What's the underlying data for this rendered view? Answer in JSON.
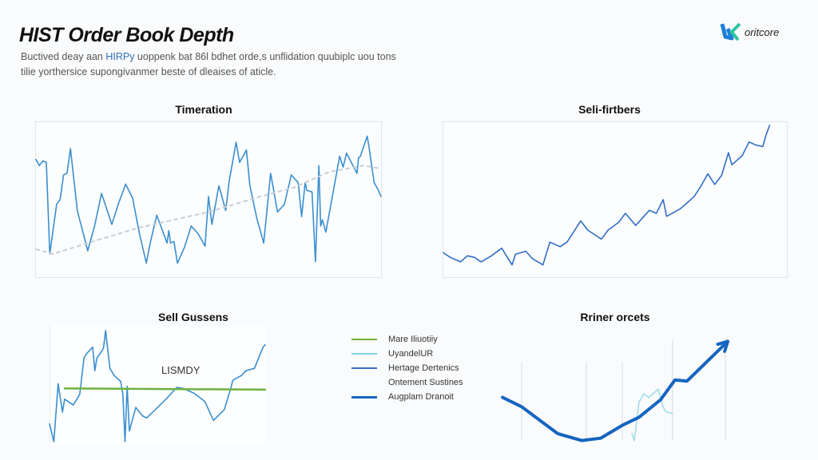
{
  "header": {
    "title": "HIST Order Book Depth",
    "subtitle_pre": "Buctived deay aan ",
    "subtitle_highlight": "HIRPy",
    "subtitle_post": " uoppenk bat 86l bdhet orde,s unflidation quubiplc uou tons tilie yorthersice supongivanmer beste of dleaises of aticle.",
    "logo_text": "oritcore",
    "accent": "#2f6db5"
  },
  "chart_data": [
    {
      "type": "line",
      "title": "Timeration",
      "xlim": [
        0,
        100
      ],
      "ylim": [
        0,
        100
      ],
      "grid": false,
      "series": [
        {
          "color": "#3a8fd0",
          "style": "solid",
          "points": [
            [
              0,
              76
            ],
            [
              1,
              72
            ],
            [
              2,
              75
            ],
            [
              3,
              74
            ],
            [
              4,
              15
            ],
            [
              6,
              47
            ],
            [
              7,
              50
            ],
            [
              8,
              66
            ],
            [
              9,
              67
            ],
            [
              10,
              83
            ],
            [
              12,
              43
            ],
            [
              15,
              17
            ],
            [
              17,
              33
            ],
            [
              19,
              54
            ],
            [
              22,
              34
            ],
            [
              24,
              48
            ],
            [
              26,
              60
            ],
            [
              28,
              51
            ],
            [
              30,
              28
            ],
            [
              32,
              9
            ],
            [
              33,
              21
            ],
            [
              35,
              40
            ],
            [
              37,
              28
            ],
            [
              38,
              22
            ],
            [
              38.5,
              30
            ],
            [
              39,
              22
            ],
            [
              40,
              23
            ],
            [
              41,
              9
            ],
            [
              43,
              19
            ],
            [
              45,
              33
            ],
            [
              47,
              28
            ],
            [
              49,
              20
            ],
            [
              50,
              52
            ],
            [
              51,
              34
            ],
            [
              53,
              59
            ],
            [
              55,
              43
            ],
            [
              56,
              62
            ],
            [
              58,
              87
            ],
            [
              59,
              74
            ],
            [
              61,
              82
            ],
            [
              62,
              59
            ],
            [
              64,
              38
            ],
            [
              66,
              22
            ],
            [
              68,
              67
            ],
            [
              70,
              42
            ],
            [
              72,
              47
            ],
            [
              74,
              66
            ],
            [
              76,
              61
            ],
            [
              77,
              39
            ],
            [
              78,
              61
            ],
            [
              78.5,
              56
            ],
            [
              80,
              55
            ],
            [
              81,
              10
            ],
            [
              82,
              72
            ],
            [
              82.5,
              33
            ],
            [
              83,
              37
            ],
            [
              84,
              29
            ],
            [
              88,
              78
            ],
            [
              89,
              71
            ],
            [
              90,
              80
            ],
            [
              93,
              67
            ],
            [
              93.5,
              77
            ],
            [
              94,
              78
            ],
            [
              96,
              91
            ],
            [
              96.5,
              84
            ],
            [
              98,
              61
            ],
            [
              99,
              57
            ],
            [
              100,
              52
            ]
          ]
        },
        {
          "color": "#c9cdd2",
          "style": "dashed",
          "points": [
            [
              0,
              18
            ],
            [
              5,
              15
            ],
            [
              15,
              22
            ],
            [
              30,
              32
            ],
            [
              50,
              42
            ],
            [
              65,
              52
            ],
            [
              75,
              58
            ],
            [
              85,
              68
            ],
            [
              95,
              72
            ],
            [
              100,
              70
            ]
          ]
        }
      ]
    },
    {
      "type": "line",
      "title": "Seli-firtbers",
      "xlim": [
        0,
        100
      ],
      "ylim": [
        0,
        100
      ],
      "grid": false,
      "series": [
        {
          "color": "#2f6fc6",
          "style": "solid",
          "points": [
            [
              0,
              15
            ],
            [
              2,
              12
            ],
            [
              5,
              9
            ],
            [
              7,
              13
            ],
            [
              9,
              12
            ],
            [
              11,
              9
            ],
            [
              14,
              13
            ],
            [
              17,
              18
            ],
            [
              20,
              7
            ],
            [
              21,
              14
            ],
            [
              24,
              16
            ],
            [
              26,
              11
            ],
            [
              29,
              7
            ],
            [
              31,
              22
            ],
            [
              34,
              19
            ],
            [
              36,
              22
            ],
            [
              38,
              29
            ],
            [
              40,
              36
            ],
            [
              42,
              30
            ],
            [
              46,
              24
            ],
            [
              48,
              30
            ],
            [
              51,
              35
            ],
            [
              53,
              41
            ],
            [
              56,
              33
            ],
            [
              60,
              43
            ],
            [
              62,
              41
            ],
            [
              64,
              50
            ],
            [
              65,
              39
            ],
            [
              69,
              44
            ],
            [
              73,
              52
            ],
            [
              75,
              59
            ],
            [
              77,
              67
            ],
            [
              79,
              60
            ],
            [
              81,
              66
            ],
            [
              83,
              81
            ],
            [
              84,
              73
            ],
            [
              87,
              79
            ],
            [
              89,
              88
            ],
            [
              91,
              86
            ],
            [
              93,
              85
            ],
            [
              94,
              93
            ],
            [
              95,
              99
            ]
          ]
        }
      ]
    },
    {
      "type": "line",
      "title": "Sell Gussens",
      "annotation": "LISMDY",
      "xlim": [
        0,
        100
      ],
      "ylim": [
        0,
        100
      ],
      "grid": false,
      "series": [
        {
          "color": "#3a8fd0",
          "style": "solid",
          "points": [
            [
              0,
              17
            ],
            [
              2,
              2
            ],
            [
              4,
              51
            ],
            [
              6,
              27
            ],
            [
              7,
              38
            ],
            [
              11,
              33
            ],
            [
              14,
              42
            ],
            [
              16,
              73
            ],
            [
              17,
              76
            ],
            [
              20,
              82
            ],
            [
              21,
              62
            ],
            [
              22,
              73
            ],
            [
              24,
              78
            ],
            [
              25,
              81
            ],
            [
              26,
              96
            ],
            [
              28,
              64
            ],
            [
              30,
              58
            ],
            [
              33,
              53
            ],
            [
              34,
              42
            ],
            [
              35,
              2
            ],
            [
              36,
              49
            ],
            [
              37,
              11
            ],
            [
              40,
              31
            ],
            [
              43,
              24
            ],
            [
              45,
              22
            ],
            [
              49,
              29
            ],
            [
              54,
              38
            ],
            [
              59,
              48
            ],
            [
              62,
              47
            ],
            [
              67,
              43
            ],
            [
              72,
              36
            ],
            [
              76,
              20
            ],
            [
              81,
              29
            ],
            [
              84,
              47
            ],
            [
              85,
              54
            ],
            [
              89,
              58
            ],
            [
              91,
              62
            ],
            [
              95,
              64
            ],
            [
              99,
              82
            ],
            [
              100,
              84
            ]
          ]
        },
        {
          "color": "#6cb33f",
          "style": "solid",
          "points": [
            [
              7,
              47
            ],
            [
              100,
              46
            ]
          ]
        }
      ]
    },
    {
      "type": "line",
      "title": "Rriner orcets",
      "xlim": [
        0,
        100
      ],
      "ylim": [
        0,
        100
      ],
      "grid": true,
      "gridlines_x": [
        11,
        38,
        53,
        74,
        96
      ],
      "legend": {
        "placement": "left",
        "entries": [
          {
            "name": "Mare Iliuotiiy",
            "color": "#6cb33f"
          },
          {
            "name": "UyandelUR",
            "color": "#7fd3e6"
          },
          {
            "name": "Hertage Dertenics",
            "color": "#3a6fc4"
          },
          {
            "name": "Ontement Sustines",
            "color": ""
          },
          {
            "name": "Augplam Dranoit",
            "color": "#1565c0"
          }
        ]
      },
      "series": [
        {
          "color": "#9fdde8",
          "style": "solid",
          "points": [
            [
              57,
              9
            ],
            [
              58,
              3
            ],
            [
              60,
              36
            ],
            [
              62,
              43
            ],
            [
              64,
              40
            ],
            [
              68,
              47
            ],
            [
              70,
              32
            ],
            [
              71,
              28
            ],
            [
              74,
              26
            ]
          ]
        },
        {
          "color": "#1565c0",
          "style": "thick-arrow",
          "points": [
            [
              3,
              40
            ],
            [
              11,
              32
            ],
            [
              26,
              9
            ],
            [
              36,
              3
            ],
            [
              44,
              5
            ],
            [
              53,
              16
            ],
            [
              60,
              23
            ],
            [
              69,
              38
            ],
            [
              75,
              55
            ],
            [
              80,
              54
            ],
            [
              97,
              88
            ]
          ]
        }
      ]
    }
  ]
}
